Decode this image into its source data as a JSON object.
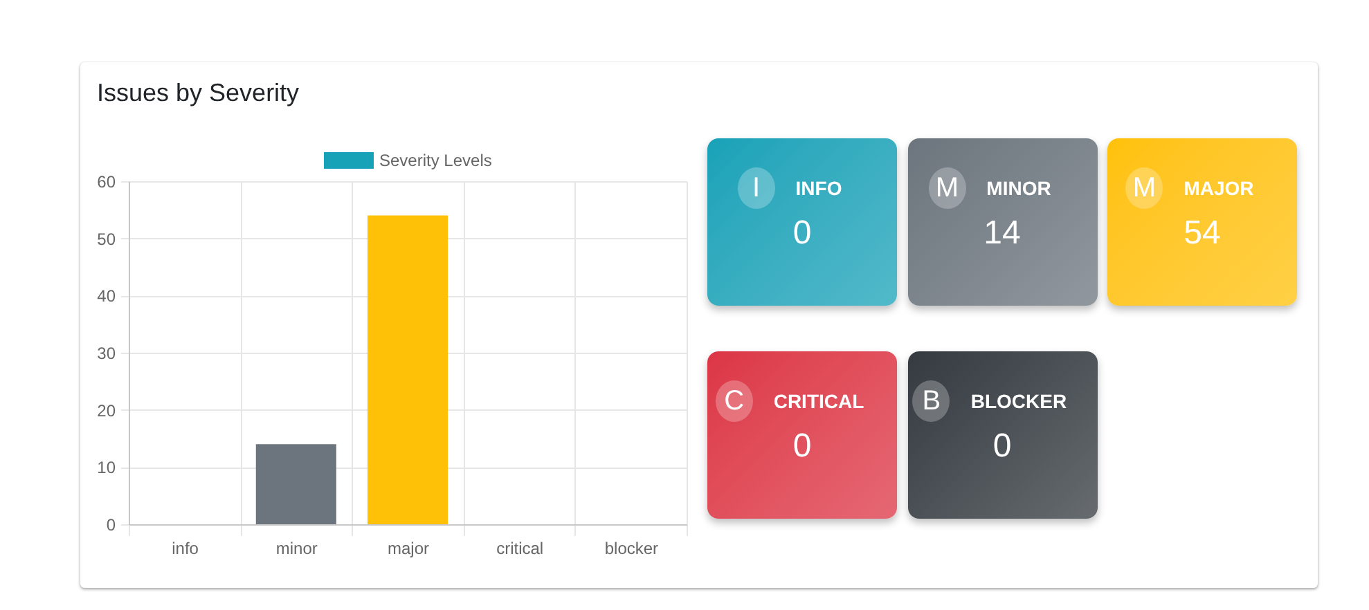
{
  "chart_data": [
    {
      "type": "bar",
      "title": "Issues by Severity",
      "categories": [
        "info",
        "minor",
        "major",
        "critical",
        "blocker"
      ],
      "series": [
        {
          "name": "Severity Levels",
          "values": [
            0,
            14,
            54,
            0,
            0
          ]
        }
      ],
      "colors": [
        "#17a2b8",
        "#6c757d",
        "#ffc107",
        "#dc3545",
        "#343a40"
      ],
      "ylim": [
        0,
        60
      ],
      "yticks": [
        0,
        10,
        20,
        30,
        40,
        50,
        60
      ],
      "grid": true,
      "legend": "top"
    },
    {
      "type": "other",
      "categories": [
        "INFO",
        "MINOR",
        "MAJOR",
        "CRITICAL",
        "BLOCKER"
      ],
      "values": [
        0,
        14,
        54,
        0,
        0
      ],
      "colors": [
        "#17a2b8",
        "#6c757d",
        "#ffc107",
        "#dc3545",
        "#343a40"
      ],
      "annotations": [
        "I",
        "M",
        "M",
        "C",
        "B"
      ],
      "data_labels": true
    }
  ]
}
